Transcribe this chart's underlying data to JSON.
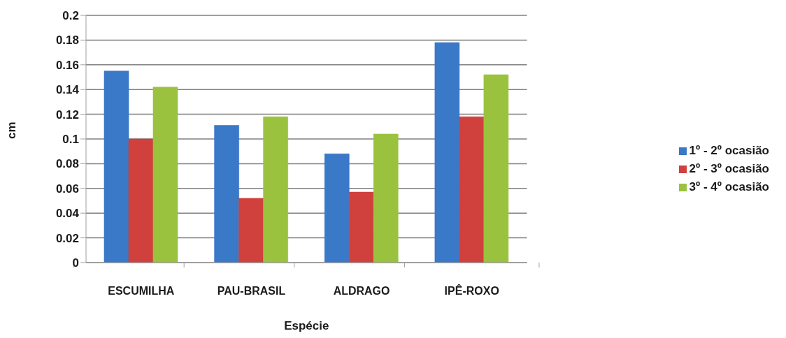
{
  "chart_data": {
    "type": "bar",
    "xlabel": "Espécie",
    "ylabel": "cm",
    "categories": [
      "ESCUMILHA",
      "PAU-BRASIL",
      "ALDRAGO",
      "IPÊ-ROXO"
    ],
    "series": [
      {
        "name": "1º - 2º ocasião",
        "color": "#3a78c8",
        "values": [
          0.155,
          0.111,
          0.088,
          0.178
        ]
      },
      {
        "name": "2º - 3º ocasião",
        "color": "#d0403c",
        "values": [
          0.1,
          0.052,
          0.057,
          0.118
        ]
      },
      {
        "name": "3º - 4º ocasião",
        "color": "#9bc23f",
        "values": [
          0.142,
          0.118,
          0.104,
          0.152
        ]
      }
    ],
    "ylim": [
      0,
      0.2
    ],
    "yticks": [
      0,
      0.02,
      0.04,
      0.06,
      0.08,
      0.1,
      0.12,
      0.14,
      0.16,
      0.18,
      0.2
    ],
    "grid": "y",
    "legend": "right"
  }
}
